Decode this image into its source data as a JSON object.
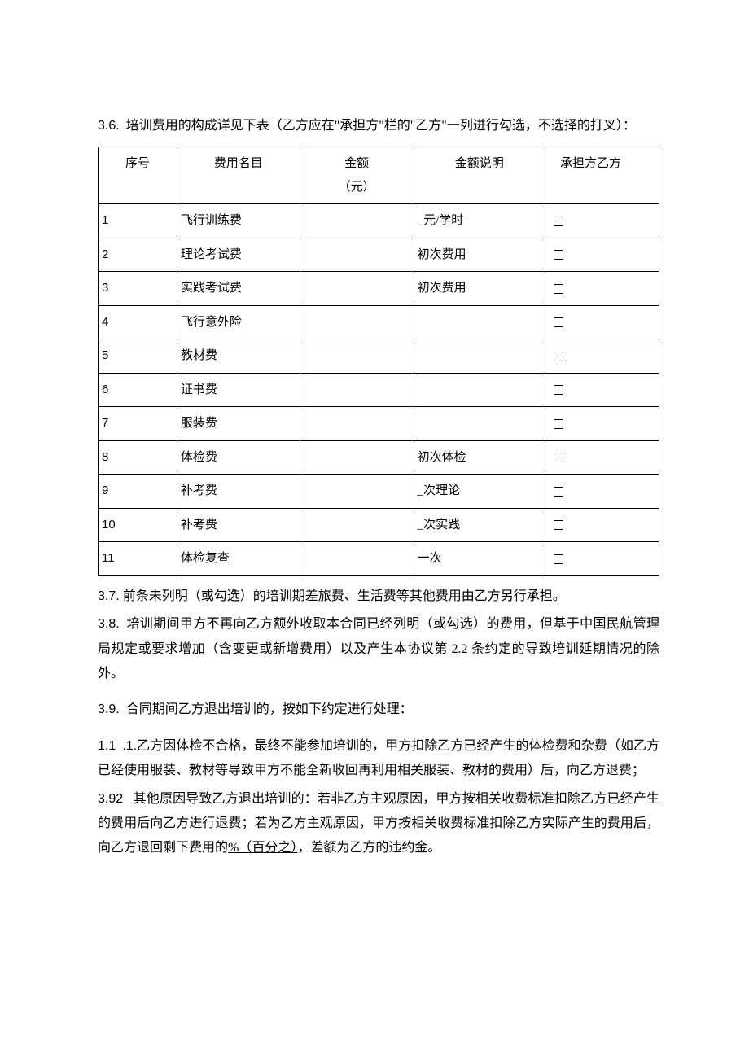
{
  "section36": {
    "label": "3.6.",
    "text": "培训费用的构成详见下表（乙方应在\"承担方\"栏的\"乙方\"一列进行勾选，不选择的打叉）："
  },
  "table": {
    "headers": {
      "seq": "序号",
      "name": "费用名目",
      "amount_line1": "金额",
      "amount_line2": "（元）",
      "desc": "金额说明",
      "party": "承担方乙方"
    },
    "rows": [
      {
        "seq": "1",
        "name": "飞行训练费",
        "amount": "",
        "desc": "_元/学时"
      },
      {
        "seq": "2",
        "name": "理论考试费",
        "amount": "",
        "desc": "初次费用"
      },
      {
        "seq": "3",
        "name": "实践考试费",
        "amount": "",
        "desc": "初次费用"
      },
      {
        "seq": "4",
        "name": "飞行意外险",
        "amount": "",
        "desc": ""
      },
      {
        "seq": "5",
        "name": "教材费",
        "amount": "",
        "desc": ""
      },
      {
        "seq": "6",
        "name": "证书费",
        "amount": "",
        "desc": ""
      },
      {
        "seq": "7",
        "name": "服装费",
        "amount": "",
        "desc": ""
      },
      {
        "seq": "8",
        "name": "体检费",
        "amount": "",
        "desc": "初次体检"
      },
      {
        "seq": "9",
        "name": "补考费",
        "amount": "",
        "desc": "_次理论"
      },
      {
        "seq": "10",
        "name": "补考费",
        "amount": "",
        "desc": "_次实践"
      },
      {
        "seq": "11",
        "name": "体检复查",
        "amount": "",
        "desc": "一次"
      }
    ]
  },
  "section37": {
    "label": "3.7.",
    "text": "前条未列明（或勾选）的培训期差旅费、生活费等其他费用由乙方另行承担。"
  },
  "section38": {
    "label": "3.8.",
    "text": "培训期间甲方不再向乙方额外收取本合同已经列明（或勾选）的费用，但基于中国民航管理局规定或要求增加（含变更或新增费用）以及产生本协议第 2.2 条约定的导致培训延期情况的除外。"
  },
  "section39": {
    "label": "3.9.",
    "text": "合同期间乙方退出培训的，按如下约定进行处理："
  },
  "section111": {
    "label": "1.1",
    "suffix": ".1.",
    "text": "乙方因体检不合格，最终不能参加培训的，甲方扣除乙方已经产生的体检费和杂费（如乙方已经使用服装、教材等导致甲方不能全新收回再利用相关服装、教材的费用）后，向乙方退费；"
  },
  "section392": {
    "label": "3.92",
    "text_before": "其他原因导致乙方退出培训的：若非乙方主观原因，甲方按相关收费标准扣除乙方已经产生的费用后向乙方进行退费；若为乙方主观原因，甲方按相关收费标准扣除乙方实际产生的费用后，向乙方退回剩下费用的",
    "underline": "%（百分之）",
    "text_after": "，差额为乙方的违约金。"
  }
}
